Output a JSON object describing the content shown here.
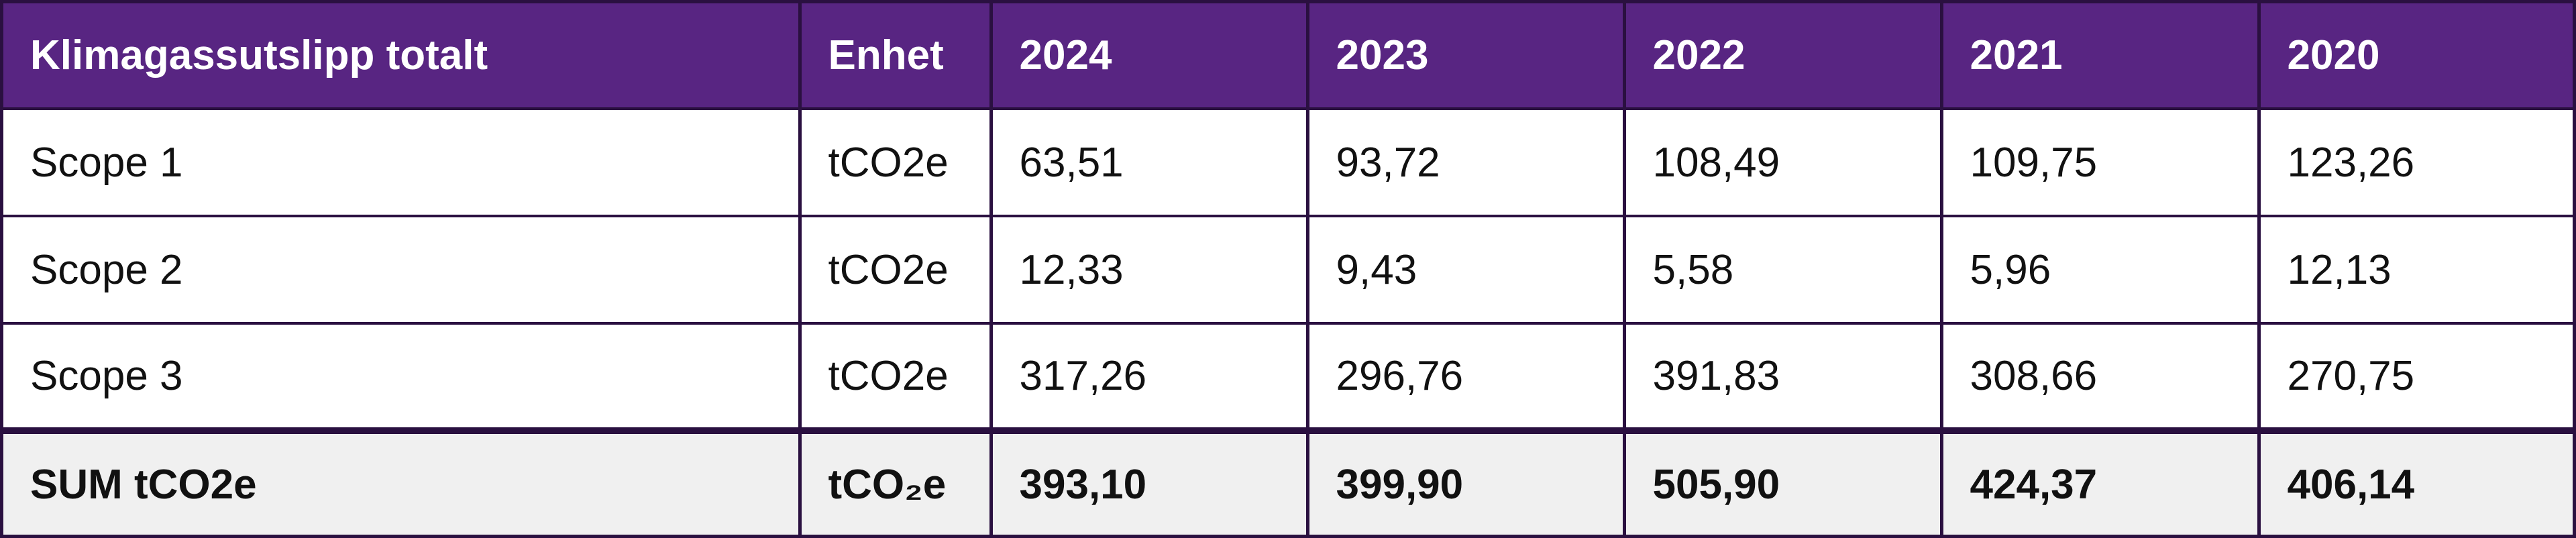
{
  "table": {
    "headers": [
      "Klimagassutslipp totalt",
      "Enhet",
      "2024",
      "2023",
      "2022",
      "2021",
      "2020"
    ],
    "rows": [
      {
        "label": "Scope 1",
        "unit": "tCO2e",
        "values": [
          "63,51",
          "93,72",
          "108,49",
          "109,75",
          "123,26"
        ]
      },
      {
        "label": "Scope 2",
        "unit": "tCO2e",
        "values": [
          "12,33",
          "9,43",
          "5,58",
          "5,96",
          "12,13"
        ]
      },
      {
        "label": "Scope 3",
        "unit": "tCO2e",
        "values": [
          "317,26",
          "296,76",
          "391,83",
          "308,66",
          "270,75"
        ]
      }
    ],
    "total": {
      "label": "SUM tCO2e",
      "unit": "tCO₂e",
      "values": [
        "393,10",
        "399,90",
        "505,90",
        "424,37",
        "406,14"
      ]
    }
  },
  "colors": {
    "header_bg": "#582582",
    "header_text": "#ffffff",
    "border": "#2a1040",
    "total_bg": "#f0f0f0"
  }
}
